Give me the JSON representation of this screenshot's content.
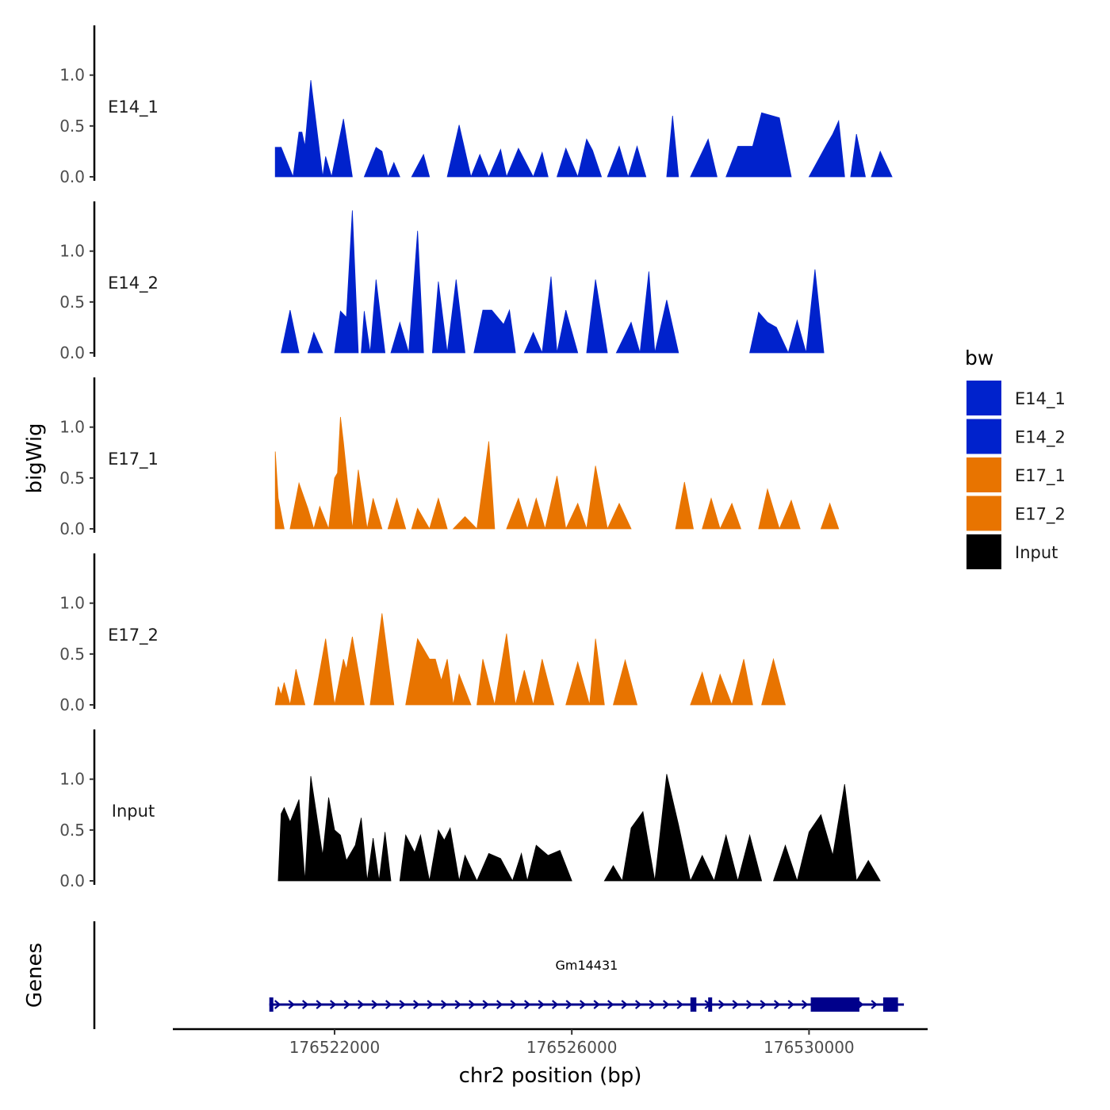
{
  "chart_data": {
    "type": "area",
    "title": "",
    "ylabel": "bigWig",
    "xlabel": "chr2 position (bp)",
    "ylim": [
      0,
      1.45
    ],
    "y_ticks": [
      0.0,
      0.5,
      1.0
    ],
    "y_tick_labels": [
      "0.0",
      "0.5",
      "1.0"
    ],
    "xlim": [
      176519300,
      176532000
    ],
    "x_ticks": [
      176522000,
      176526000,
      176530000
    ],
    "x_tick_labels": [
      "176522000",
      "176526000",
      "176530000"
    ],
    "legend": {
      "title": "bw",
      "position": "right",
      "entries": [
        {
          "label": "E14_1",
          "color": "#0022cc"
        },
        {
          "label": "E14_2",
          "color": "#0022cc"
        },
        {
          "label": "E17_1",
          "color": "#e87400"
        },
        {
          "label": "E17_2",
          "color": "#e87400"
        },
        {
          "label": "Input",
          "color": "#000000"
        }
      ]
    },
    "series": [
      {
        "name": "E14_1",
        "color": "#0022cc",
        "x": [
          176521000,
          176521100,
          176521300,
          176521400,
          176521450,
          176521500,
          176521600,
          176521800,
          176521850,
          176521950,
          176522150,
          176522300,
          176522500,
          176522700,
          176522800,
          176522900,
          176523000,
          176523100,
          176523300,
          176523500,
          176523600,
          176523900,
          176524100,
          176524300,
          176524450,
          176524600,
          176524800,
          176524900,
          176525100,
          176525350,
          176525500,
          176525600,
          176525750,
          176525900,
          176526100,
          176526250,
          176526350,
          176526500,
          176526600,
          176526800,
          176526950,
          176527100,
          176527250,
          176527500,
          176527600,
          176527700,
          176527800,
          176528000,
          176528300,
          176528450,
          176528600,
          176528800,
          176529000,
          176529050,
          176529200,
          176529500,
          176529700,
          176529850,
          176530000,
          176530300,
          176530400,
          176530500,
          176530600,
          176530700,
          176530800,
          176530950,
          176531050,
          176531200,
          176531400,
          176531450,
          176531600,
          176531700,
          176531750,
          176531900,
          176532000
        ],
        "values": [
          0.29,
          0.29,
          0.0,
          0.44,
          0.44,
          0.3,
          0.95,
          0.0,
          0.2,
          0.0,
          0.57,
          0.0,
          0.0,
          0.29,
          0.25,
          0.0,
          0.14,
          0.0,
          0.0,
          0.22,
          0.0,
          0.0,
          0.51,
          0.0,
          0.22,
          0.0,
          0.27,
          0.0,
          0.28,
          0.0,
          0.24,
          0.0,
          0.0,
          0.28,
          0.0,
          0.37,
          0.26,
          0.0,
          0.0,
          0.3,
          0.0,
          0.3,
          0.0,
          0.0,
          0.0,
          0.6,
          0.0,
          0.0,
          0.37,
          0.0,
          0.0,
          0.3,
          0.3,
          0.3,
          0.63,
          0.58,
          0.0,
          0.0,
          0.0,
          0.32,
          0.42,
          0.55,
          0.0,
          0.0,
          0.42,
          0.0,
          0.0,
          0.25,
          0.0,
          0.0,
          0.0,
          0.0,
          0.0,
          0.0,
          0.0
        ]
      },
      {
        "name": "E14_2",
        "color": "#0022cc",
        "x": [
          176521100,
          176521250,
          176521400,
          176521550,
          176521650,
          176521800,
          176522000,
          176522100,
          176522200,
          176522300,
          176522400,
          176522450,
          176522500,
          176522600,
          176522700,
          176522850,
          176522950,
          176523100,
          176523250,
          176523400,
          176523500,
          176523650,
          176523750,
          176523900,
          176524050,
          176524200,
          176524350,
          176524500,
          176524650,
          176524850,
          176524950,
          176525050,
          176525200,
          176525350,
          176525500,
          176525650,
          176525750,
          176525900,
          176526100,
          176526250,
          176526400,
          176526600,
          176526750,
          176527000,
          176527150,
          176527300,
          176527400,
          176527600,
          176527800,
          176527950,
          176528050,
          176528300,
          176528550,
          176528700,
          176528850,
          176529000,
          176529150,
          176529300,
          176529450,
          176529650,
          176529800,
          176529950,
          176530100,
          176530250,
          176530400,
          176530550,
          176530700,
          176530850,
          176530950,
          176531100,
          176531200,
          176531300,
          176531400,
          176531450,
          176531600,
          176531800,
          176531900,
          176532000
        ],
        "values": [
          0.0,
          0.42,
          0.0,
          0.0,
          0.2,
          0.0,
          0.0,
          0.41,
          0.35,
          1.4,
          0.0,
          0.0,
          0.41,
          0.0,
          0.72,
          0.0,
          0.0,
          0.3,
          0.0,
          1.2,
          0.0,
          0.0,
          0.7,
          0.0,
          0.72,
          0.0,
          0.0,
          0.42,
          0.42,
          0.28,
          0.42,
          0.0,
          0.0,
          0.2,
          0.0,
          0.75,
          0.0,
          0.42,
          0.0,
          0.0,
          0.72,
          0.0,
          0.0,
          0.3,
          0.0,
          0.8,
          0.0,
          0.52,
          0.0,
          0.0,
          0.0,
          0.0,
          0.0,
          0.0,
          0.0,
          0.0,
          0.4,
          0.3,
          0.25,
          0.0,
          0.32,
          0.0,
          0.82,
          0.0,
          0.0,
          0.0,
          0.0,
          0.0,
          0.0,
          0.0,
          0.0,
          0.0,
          0.0,
          0.0,
          0.0,
          0.0,
          0.0,
          0.0
        ]
      },
      {
        "name": "E17_1",
        "color": "#e87400",
        "x": [
          176521000,
          176521050,
          176521150,
          176521250,
          176521400,
          176521550,
          176521650,
          176521750,
          176521900,
          176522000,
          176522050,
          176522100,
          176522150,
          176522300,
          176522400,
          176522550,
          176522650,
          176522800,
          176522900,
          176523050,
          176523200,
          176523300,
          176523400,
          176523600,
          176523750,
          176523900,
          176524000,
          176524200,
          176524400,
          176524600,
          176524700,
          176524900,
          176525100,
          176525250,
          176525400,
          176525550,
          176525750,
          176525900,
          176526100,
          176526250,
          176526400,
          176526600,
          176526800,
          176527000,
          176527150,
          176527300,
          176527500,
          176527600,
          176527750,
          176527900,
          176528050,
          176528200,
          176528350,
          176528500,
          176528700,
          176528850,
          176529000,
          176529150,
          176529300,
          176529500,
          176529700,
          176529850,
          176530000,
          176530100,
          176530200,
          176530350,
          176530500,
          176530700,
          176530850,
          176531000,
          176531150,
          176531300,
          176531450,
          176531700,
          176531900
        ],
        "values": [
          0.76,
          0.3,
          0.0,
          0.0,
          0.45,
          0.2,
          0.0,
          0.22,
          0.0,
          0.5,
          0.55,
          1.1,
          0.85,
          0.0,
          0.58,
          0.0,
          0.3,
          0.0,
          0.0,
          0.3,
          0.0,
          0.0,
          0.2,
          0.0,
          0.3,
          0.0,
          0.0,
          0.12,
          0.0,
          0.86,
          0.0,
          0.0,
          0.3,
          0.0,
          0.3,
          0.0,
          0.52,
          0.0,
          0.25,
          0.0,
          0.62,
          0.0,
          0.25,
          0.0,
          0.0,
          0.0,
          0.0,
          0.0,
          0.0,
          0.46,
          0.0,
          0.0,
          0.3,
          0.0,
          0.25,
          0.0,
          0.0,
          0.0,
          0.39,
          0.0,
          0.28,
          0.0,
          0.0,
          0.0,
          0.0,
          0.25,
          0.0,
          0.0,
          0.0,
          0.0,
          0.0,
          0.0,
          0.0,
          0.0,
          0.0
        ]
      },
      {
        "name": "E17_2",
        "color": "#e87400",
        "x": [
          176521000,
          176521050,
          176521100,
          176521150,
          176521250,
          176521350,
          176521500,
          176521650,
          176521850,
          176522000,
          176522150,
          176522200,
          176522300,
          176522500,
          176522600,
          176522800,
          176523000,
          176523200,
          176523400,
          176523600,
          176523700,
          176523800,
          176523900,
          176524000,
          176524100,
          176524300,
          176524400,
          176524500,
          176524700,
          176524900,
          176525050,
          176525200,
          176525350,
          176525500,
          176525700,
          176525900,
          176526100,
          176526300,
          176526400,
          176526550,
          176526700,
          176526900,
          176527100,
          176527300,
          176527450,
          176527600,
          176527800,
          176528000,
          176528200,
          176528350,
          176528500,
          176528700,
          176528900,
          176529050,
          176529200,
          176529400,
          176529600,
          176529800,
          176530000,
          176530150,
          176530300,
          176530500,
          176530700,
          176530900,
          176531100,
          176531200,
          176531300,
          176531450,
          176531650,
          176531900
        ],
        "values": [
          0.0,
          0.18,
          0.1,
          0.22,
          0.0,
          0.35,
          0.0,
          0.0,
          0.65,
          0.0,
          0.45,
          0.35,
          0.67,
          0.0,
          0.0,
          0.9,
          0.0,
          0.0,
          0.65,
          0.45,
          0.45,
          0.24,
          0.45,
          0.0,
          0.3,
          0.0,
          0.0,
          0.45,
          0.0,
          0.7,
          0.0,
          0.34,
          0.0,
          0.45,
          0.0,
          0.0,
          0.42,
          0.0,
          0.65,
          0.0,
          0.0,
          0.44,
          0.0,
          0.0,
          0.0,
          0.0,
          0.0,
          0.0,
          0.32,
          0.0,
          0.3,
          0.0,
          0.45,
          0.0,
          0.0,
          0.45,
          0.0,
          0.0,
          0.0,
          0.0,
          0.0,
          0.0,
          0.0,
          0.0,
          0.0,
          0.0,
          0.0,
          0.0,
          0.0,
          0.0
        ]
      },
      {
        "name": "Input",
        "color": "#000000",
        "x": [
          176521050,
          176521100,
          176521150,
          176521250,
          176521400,
          176521500,
          176521600,
          176521800,
          176521900,
          176522000,
          176522100,
          176522200,
          176522350,
          176522450,
          176522550,
          176522650,
          176522750,
          176522850,
          176522950,
          176523100,
          176523200,
          176523350,
          176523450,
          176523600,
          176523750,
          176523850,
          176523950,
          176524100,
          176524200,
          176524400,
          176524600,
          176524800,
          176525000,
          176525150,
          176525250,
          176525400,
          176525600,
          176525800,
          176526000,
          176526200,
          176526400,
          176526550,
          176526700,
          176526850,
          176527000,
          176527200,
          176527400,
          176527600,
          176527800,
          176528000,
          176528200,
          176528400,
          176528600,
          176528800,
          176529000,
          176529200,
          176529400,
          176529600,
          176529800,
          176530000,
          176530200,
          176530400,
          176530600,
          176530800,
          176531000,
          176531200,
          176531350,
          176531500,
          176531700,
          176531850,
          176531950
        ],
        "values": [
          0.0,
          0.66,
          0.72,
          0.58,
          0.8,
          0.0,
          1.03,
          0.25,
          0.82,
          0.5,
          0.45,
          0.2,
          0.35,
          0.62,
          0.0,
          0.42,
          0.0,
          0.48,
          0.0,
          0.0,
          0.45,
          0.28,
          0.45,
          0.0,
          0.5,
          0.4,
          0.52,
          0.0,
          0.25,
          0.0,
          0.27,
          0.22,
          0.0,
          0.27,
          0.0,
          0.35,
          0.25,
          0.3,
          0.0,
          0.0,
          0.0,
          0.0,
          0.15,
          0.0,
          0.52,
          0.68,
          0.0,
          1.05,
          0.55,
          0.0,
          0.25,
          0.0,
          0.45,
          0.0,
          0.45,
          0.0,
          0.0,
          0.35,
          0.0,
          0.48,
          0.65,
          0.25,
          0.95,
          0.0,
          0.2,
          0.0,
          0.0,
          0.0,
          0.0,
          0.0,
          0.0
        ]
      }
    ],
    "gene_track": {
      "title": "Genes",
      "gene_name": "Gm14431",
      "color": "#00008b",
      "start": 176520900,
      "end": 176531600,
      "strand": "+",
      "exons": [
        {
          "start": 176520900,
          "end": 176520960
        },
        {
          "start": 176528000,
          "end": 176528100
        },
        {
          "start": 176528300,
          "end": 176528340
        },
        {
          "start": 176530030,
          "end": 176530850
        },
        {
          "start": 176531250,
          "end": 176531500
        }
      ]
    }
  }
}
